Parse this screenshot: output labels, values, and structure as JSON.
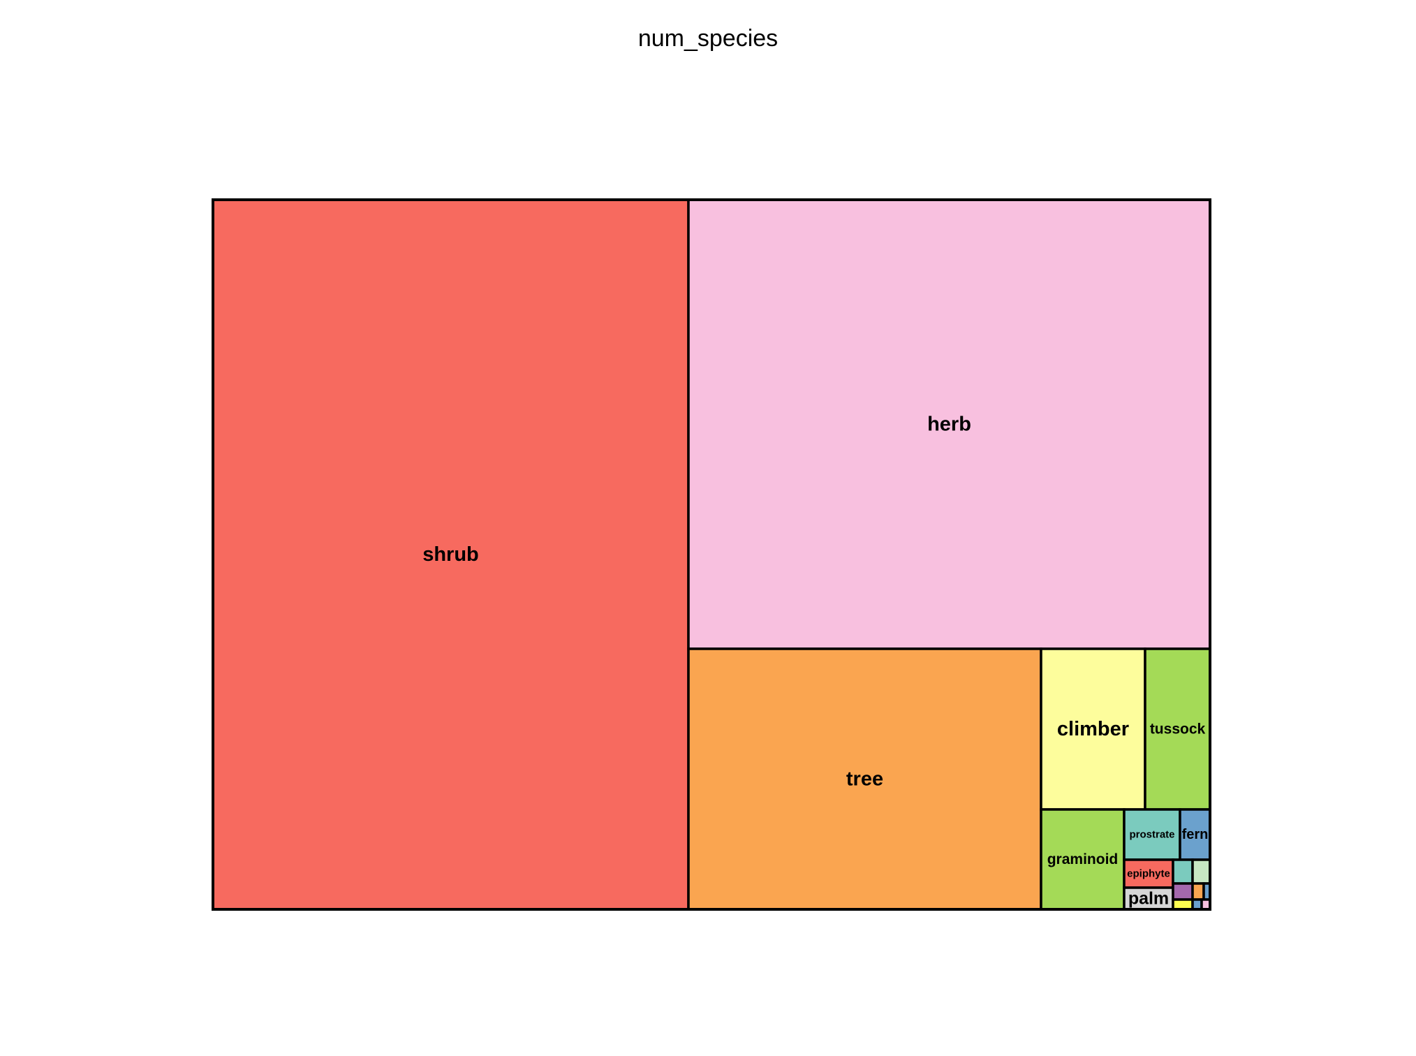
{
  "chart_data": {
    "type": "treemap",
    "title": "num_species",
    "cells": [
      {
        "label": "shrub",
        "color": "#F76A5F",
        "relative_area": 0.4763
      },
      {
        "label": "herb",
        "color": "#F8C0DF",
        "relative_area": 0.3316
      },
      {
        "label": "tree",
        "color": "#FAA550",
        "relative_area": 0.1295
      },
      {
        "label": "climber",
        "color": "#FDFD9C",
        "relative_area": 0.0234
      },
      {
        "label": "tussock",
        "color": "#A4DA57",
        "relative_area": 0.0148
      },
      {
        "label": "graminoid",
        "color": "#A4DA57",
        "relative_area": 0.0116
      },
      {
        "label": "prostrate",
        "color": "#7BCBBE",
        "relative_area": 0.0039
      },
      {
        "label": "fern",
        "color": "#6BA1CD",
        "relative_area": 0.002
      },
      {
        "label": "epiphyte",
        "color": "#F76A5F",
        "relative_area": 0.0019
      },
      {
        "label": "palm",
        "color": "#D6D6D6",
        "relative_area": 0.0015
      },
      {
        "label": "",
        "color": "#7BCBBE",
        "relative_area": 0.0007
      },
      {
        "label": "",
        "color": "#C7E7C3",
        "relative_area": 0.0006
      },
      {
        "label": "",
        "color": "#A468AD",
        "relative_area": 0.0005
      },
      {
        "label": "",
        "color": "#FAA550",
        "relative_area": 0.0003
      },
      {
        "label": "",
        "color": "#FDFD50",
        "relative_area": 0.0003
      },
      {
        "label": "",
        "color": "#6BA1CD",
        "relative_area": 0.0002
      },
      {
        "label": "",
        "color": "#6BA1CD",
        "relative_area": 0.0001
      },
      {
        "label": "",
        "color": "#F8C0DF",
        "relative_area": 0.0001
      }
    ]
  }
}
